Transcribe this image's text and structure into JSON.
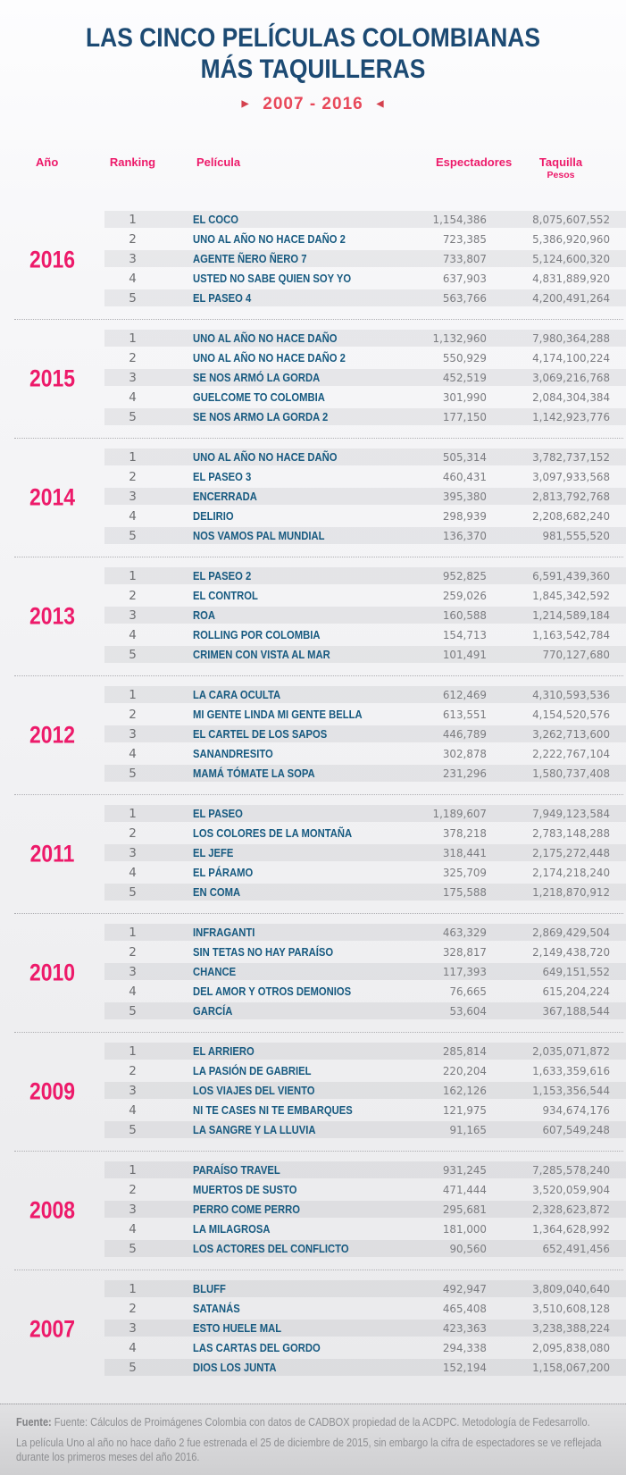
{
  "header": {
    "title_line1": "LAS CINCO PELÍCULAS COLOMBIANAS",
    "title_line2": "MÁS TAQUILLERAS",
    "subtitle": "2007 - 2016"
  },
  "columns": {
    "year": "Año",
    "ranking": "Ranking",
    "movie": "Película",
    "viewers": "Espectadores",
    "boxoffice": "Taquilla",
    "boxoffice_unit": "Pesos"
  },
  "colors": {
    "accent_pink": "#ed1a6a",
    "subtitle_red": "#e8485a",
    "title_navy": "#1c4a73",
    "movie_blue": "#175a80",
    "number_gray": "#7b7c80"
  },
  "chart_data": {
    "type": "table",
    "title": "LAS CINCO PELÍCULAS COLOMBIANAS MÁS TAQUILLERAS",
    "subtitle": "2007 - 2016",
    "columns": [
      "Año",
      "Ranking",
      "Película",
      "Espectadores",
      "Taquilla (Pesos)"
    ],
    "groups": [
      {
        "year": "2016",
        "rows": [
          {
            "rank": "1",
            "movie": "EL COCO",
            "viewers": "1,154,386",
            "boxoffice": "8,075,607,552"
          },
          {
            "rank": "2",
            "movie": "UNO AL AÑO NO HACE DAÑO 2",
            "viewers": "723,385",
            "boxoffice": "5,386,920,960"
          },
          {
            "rank": "3",
            "movie": "AGENTE ÑERO ÑERO 7",
            "viewers": "733,807",
            "boxoffice": "5,124,600,320"
          },
          {
            "rank": "4",
            "movie": "USTED NO SABE QUIEN SOY YO",
            "viewers": "637,903",
            "boxoffice": "4,831,889,920"
          },
          {
            "rank": "5",
            "movie": "EL PASEO 4",
            "viewers": "563,766",
            "boxoffice": "4,200,491,264"
          }
        ]
      },
      {
        "year": "2015",
        "rows": [
          {
            "rank": "1",
            "movie": "UNO AL AÑO NO HACE DAÑO",
            "viewers": "1,132,960",
            "boxoffice": "7,980,364,288"
          },
          {
            "rank": "2",
            "movie": "UNO AL AÑO NO HACE DAÑO 2",
            "viewers": "550,929",
            "boxoffice": "4,174,100,224"
          },
          {
            "rank": "3",
            "movie": "SE NOS ARMÓ LA GORDA",
            "viewers": "452,519",
            "boxoffice": "3,069,216,768"
          },
          {
            "rank": "4",
            "movie": "GUELCOME TO COLOMBIA",
            "viewers": "301,990",
            "boxoffice": "2,084,304,384"
          },
          {
            "rank": "5",
            "movie": "SE NOS ARMO LA GORDA 2",
            "viewers": "177,150",
            "boxoffice": "1,142,923,776"
          }
        ]
      },
      {
        "year": "2014",
        "rows": [
          {
            "rank": "1",
            "movie": "UNO AL AÑO NO HACE DAÑO",
            "viewers": "505,314",
            "boxoffice": "3,782,737,152"
          },
          {
            "rank": "2",
            "movie": "EL PASEO 3",
            "viewers": "460,431",
            "boxoffice": "3,097,933,568"
          },
          {
            "rank": "3",
            "movie": "ENCERRADA",
            "viewers": "395,380",
            "boxoffice": "2,813,792,768"
          },
          {
            "rank": "4",
            "movie": "DELIRIO",
            "viewers": "298,939",
            "boxoffice": "2,208,682,240"
          },
          {
            "rank": "5",
            "movie": "NOS VAMOS PAL MUNDIAL",
            "viewers": "136,370",
            "boxoffice": "981,555,520"
          }
        ]
      },
      {
        "year": "2013",
        "rows": [
          {
            "rank": "1",
            "movie": "EL PASEO 2",
            "viewers": "952,825",
            "boxoffice": "6,591,439,360"
          },
          {
            "rank": "2",
            "movie": "EL CONTROL",
            "viewers": "259,026",
            "boxoffice": "1,845,342,592"
          },
          {
            "rank": "3",
            "movie": "ROA",
            "viewers": "160,588",
            "boxoffice": "1,214,589,184"
          },
          {
            "rank": "4",
            "movie": "ROLLING POR COLOMBIA",
            "viewers": "154,713",
            "boxoffice": "1,163,542,784"
          },
          {
            "rank": "5",
            "movie": "CRIMEN CON VISTA AL MAR",
            "viewers": "101,491",
            "boxoffice": "770,127,680"
          }
        ]
      },
      {
        "year": "2012",
        "rows": [
          {
            "rank": "1",
            "movie": "LA CARA OCULTA",
            "viewers": "612,469",
            "boxoffice": "4,310,593,536"
          },
          {
            "rank": "2",
            "movie": "MI GENTE LINDA MI GENTE BELLA",
            "viewers": "613,551",
            "boxoffice": "4,154,520,576"
          },
          {
            "rank": "3",
            "movie": "EL CARTEL DE LOS SAPOS",
            "viewers": "446,789",
            "boxoffice": "3,262,713,600"
          },
          {
            "rank": "4",
            "movie": "SANANDRESITO",
            "viewers": "302,878",
            "boxoffice": "2,222,767,104"
          },
          {
            "rank": "5",
            "movie": "MAMÁ TÓMATE LA SOPA",
            "viewers": "231,296",
            "boxoffice": "1,580,737,408"
          }
        ]
      },
      {
        "year": "2011",
        "rows": [
          {
            "rank": "1",
            "movie": "EL PASEO",
            "viewers": "1,189,607",
            "boxoffice": "7,949,123,584"
          },
          {
            "rank": "2",
            "movie": "LOS COLORES DE LA MONTAÑA",
            "viewers": "378,218",
            "boxoffice": "2,783,148,288"
          },
          {
            "rank": "3",
            "movie": "EL JEFE",
            "viewers": "318,441",
            "boxoffice": "2,175,272,448"
          },
          {
            "rank": "4",
            "movie": "EL PÁRAMO",
            "viewers": "325,709",
            "boxoffice": "2,174,218,240"
          },
          {
            "rank": "5",
            "movie": "EN COMA",
            "viewers": "175,588",
            "boxoffice": "1,218,870,912"
          }
        ]
      },
      {
        "year": "2010",
        "rows": [
          {
            "rank": "1",
            "movie": "INFRAGANTI",
            "viewers": "463,329",
            "boxoffice": "2,869,429,504"
          },
          {
            "rank": "2",
            "movie": "SIN TETAS NO HAY PARAÍSO",
            "viewers": "328,817",
            "boxoffice": "2,149,438,720"
          },
          {
            "rank": "3",
            "movie": "CHANCE",
            "viewers": "117,393",
            "boxoffice": "649,151,552"
          },
          {
            "rank": "4",
            "movie": "DEL AMOR Y OTROS DEMONIOS",
            "viewers": "76,665",
            "boxoffice": "615,204,224"
          },
          {
            "rank": "5",
            "movie": "GARCÍA",
            "viewers": "53,604",
            "boxoffice": "367,188,544"
          }
        ]
      },
      {
        "year": "2009",
        "rows": [
          {
            "rank": "1",
            "movie": "EL ARRIERO",
            "viewers": "285,814",
            "boxoffice": "2,035,071,872"
          },
          {
            "rank": "2",
            "movie": "LA PASIÓN DE GABRIEL",
            "viewers": "220,204",
            "boxoffice": "1,633,359,616"
          },
          {
            "rank": "3",
            "movie": "LOS VIAJES DEL VIENTO",
            "viewers": "162,126",
            "boxoffice": "1,153,356,544"
          },
          {
            "rank": "4",
            "movie": "NI TE CASES NI TE EMBARQUES",
            "viewers": "121,975",
            "boxoffice": "934,674,176"
          },
          {
            "rank": "5",
            "movie": "LA SANGRE Y LA LLUVIA",
            "viewers": "91,165",
            "boxoffice": "607,549,248"
          }
        ]
      },
      {
        "year": "2008",
        "rows": [
          {
            "rank": "1",
            "movie": "PARAÍSO TRAVEL",
            "viewers": "931,245",
            "boxoffice": "7,285,578,240"
          },
          {
            "rank": "2",
            "movie": "MUERTOS DE SUSTO",
            "viewers": "471,444",
            "boxoffice": "3,520,059,904"
          },
          {
            "rank": "3",
            "movie": "PERRO COME PERRO",
            "viewers": "295,681",
            "boxoffice": "2,328,623,872"
          },
          {
            "rank": "4",
            "movie": "LA MILAGROSA",
            "viewers": "181,000",
            "boxoffice": "1,364,628,992"
          },
          {
            "rank": "5",
            "movie": "LOS ACTORES DEL CONFLICTO",
            "viewers": "90,560",
            "boxoffice": "652,491,456"
          }
        ]
      },
      {
        "year": "2007",
        "rows": [
          {
            "rank": "1",
            "movie": "BLUFF",
            "viewers": "492,947",
            "boxoffice": "3,809,040,640"
          },
          {
            "rank": "2",
            "movie": "SATANÁS",
            "viewers": "465,408",
            "boxoffice": "3,510,608,128"
          },
          {
            "rank": "3",
            "movie": "ESTO HUELE MAL",
            "viewers": "423,363",
            "boxoffice": "3,238,388,224"
          },
          {
            "rank": "4",
            "movie": "LAS CARTAS DEL GORDO",
            "viewers": "294,338",
            "boxoffice": "2,095,838,080"
          },
          {
            "rank": "5",
            "movie": "DIOS LOS JUNTA",
            "viewers": "152,194",
            "boxoffice": "1,158,067,200"
          }
        ]
      }
    ]
  },
  "footer": {
    "source_label": "Fuente:",
    "source_text": "Fuente: Cálculos de Proimágenes Colombia con datos de CADBOX propiedad de la ACDPC. Metodología de Fedesarrollo.",
    "note": "La película Uno al año no hace daño 2 fue estrenada el 25 de diciembre de 2015, sin embargo la cifra de espectadores se ve reflejada durante los primeros meses del año 2016."
  }
}
